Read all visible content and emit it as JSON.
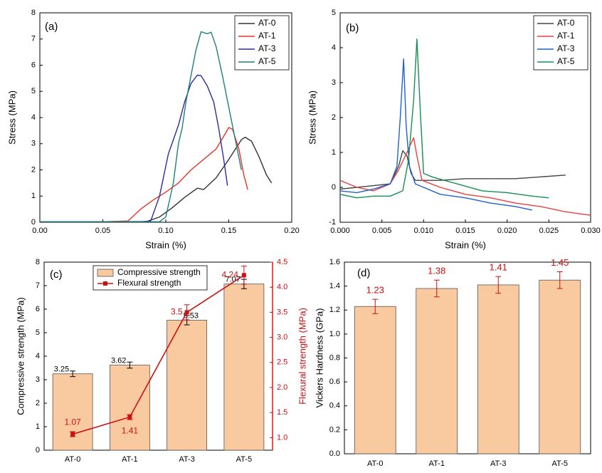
{
  "chart_data": [
    {
      "panel": "(a)",
      "type": "line",
      "xlabel": "Strain (%)",
      "ylabel": "Stress (MPa)",
      "xlim": [
        0,
        0.2
      ],
      "ylim": [
        0,
        8
      ],
      "xticks": [
        "0.00",
        "0.05",
        "0.10",
        "0.15",
        "0.20"
      ],
      "yticks": [
        "0",
        "1",
        "2",
        "3",
        "4",
        "5",
        "6",
        "7",
        "8"
      ],
      "legend_position": "top-right",
      "series": [
        {
          "name": "AT-0",
          "color": "#333333",
          "points": [
            [
              0,
              0.02
            ],
            [
              0.05,
              0.02
            ],
            [
              0.085,
              0.03
            ],
            [
              0.095,
              0.2
            ],
            [
              0.105,
              0.55
            ],
            [
              0.115,
              0.95
            ],
            [
              0.125,
              1.3
            ],
            [
              0.13,
              1.25
            ],
            [
              0.14,
              1.7
            ],
            [
              0.15,
              2.4
            ],
            [
              0.16,
              3.15
            ],
            [
              0.163,
              3.25
            ],
            [
              0.168,
              3.1
            ],
            [
              0.174,
              2.5
            ],
            [
              0.18,
              1.8
            ],
            [
              0.184,
              1.5
            ]
          ]
        },
        {
          "name": "AT-1",
          "color": "#e8332a",
          "points": [
            [
              0,
              0.02
            ],
            [
              0.05,
              0.02
            ],
            [
              0.07,
              0.05
            ],
            [
              0.08,
              0.5
            ],
            [
              0.09,
              0.85
            ],
            [
              0.1,
              1.15
            ],
            [
              0.11,
              1.5
            ],
            [
              0.12,
              2.0
            ],
            [
              0.13,
              2.4
            ],
            [
              0.14,
              2.8
            ],
            [
              0.145,
              3.2
            ],
            [
              0.15,
              3.62
            ],
            [
              0.153,
              3.55
            ],
            [
              0.158,
              2.8
            ],
            [
              0.162,
              1.8
            ],
            [
              0.165,
              1.25
            ]
          ]
        },
        {
          "name": "AT-3",
          "color": "#2b2b9e",
          "points": [
            [
              0,
              0.02
            ],
            [
              0.08,
              0.02
            ],
            [
              0.088,
              0.05
            ],
            [
              0.095,
              1.0
            ],
            [
              0.102,
              2.6
            ],
            [
              0.11,
              3.7
            ],
            [
              0.115,
              4.6
            ],
            [
              0.12,
              5.3
            ],
            [
              0.125,
              5.62
            ],
            [
              0.128,
              5.6
            ],
            [
              0.133,
              5.2
            ],
            [
              0.138,
              4.6
            ],
            [
              0.142,
              3.6
            ],
            [
              0.146,
              2.4
            ],
            [
              0.149,
              1.4
            ]
          ]
        },
        {
          "name": "AT-5",
          "color": "#1f7f7f",
          "points": [
            [
              0,
              0.02
            ],
            [
              0.095,
              0.02
            ],
            [
              0.1,
              0.2
            ],
            [
              0.106,
              1.5
            ],
            [
              0.11,
              3.0
            ],
            [
              0.113,
              3.6
            ],
            [
              0.116,
              4.6
            ],
            [
              0.12,
              5.6
            ],
            [
              0.124,
              6.6
            ],
            [
              0.128,
              7.28
            ],
            [
              0.133,
              7.2
            ],
            [
              0.136,
              7.26
            ],
            [
              0.14,
              6.7
            ],
            [
              0.145,
              5.6
            ],
            [
              0.15,
              4.4
            ],
            [
              0.155,
              3.2
            ],
            [
              0.16,
              2.0
            ]
          ]
        }
      ]
    },
    {
      "panel": "(b)",
      "type": "line",
      "xlabel": "Strain (%)",
      "ylabel": "Stress (MPa)",
      "xlim": [
        0,
        0.03
      ],
      "ylim": [
        -1,
        5
      ],
      "xticks": [
        "0.000",
        "0.005",
        "0.010",
        "0.015",
        "0.020",
        "0.025",
        "0.030"
      ],
      "yticks": [
        "-1",
        "0",
        "1",
        "2",
        "3",
        "4",
        "5"
      ],
      "legend_position": "top-right",
      "series": [
        {
          "name": "AT-0",
          "color": "#444444",
          "points": [
            [
              0,
              -0.05
            ],
            [
              0.002,
              0.0
            ],
            [
              0.004,
              0.05
            ],
            [
              0.006,
              0.1
            ],
            [
              0.007,
              0.6
            ],
            [
              0.0075,
              1.05
            ],
            [
              0.008,
              0.9
            ],
            [
              0.0085,
              0.4
            ],
            [
              0.009,
              0.2
            ],
            [
              0.012,
              0.2
            ],
            [
              0.015,
              0.25
            ],
            [
              0.018,
              0.25
            ],
            [
              0.021,
              0.25
            ],
            [
              0.024,
              0.3
            ],
            [
              0.027,
              0.35
            ]
          ]
        },
        {
          "name": "AT-1",
          "color": "#e84040",
          "points": [
            [
              0,
              0.2
            ],
            [
              0.002,
              0.0
            ],
            [
              0.004,
              -0.1
            ],
            [
              0.006,
              0.1
            ],
            [
              0.007,
              0.5
            ],
            [
              0.008,
              1.0
            ],
            [
              0.0088,
              1.42
            ],
            [
              0.0092,
              0.9
            ],
            [
              0.0098,
              0.2
            ],
            [
              0.012,
              0.0
            ],
            [
              0.015,
              -0.2
            ],
            [
              0.018,
              -0.3
            ],
            [
              0.021,
              -0.45
            ],
            [
              0.024,
              -0.55
            ],
            [
              0.027,
              -0.7
            ],
            [
              0.03,
              -0.8
            ]
          ]
        },
        {
          "name": "AT-3",
          "color": "#2060d0",
          "points": [
            [
              0,
              -0.1
            ],
            [
              0.002,
              -0.15
            ],
            [
              0.004,
              -0.05
            ],
            [
              0.006,
              0.1
            ],
            [
              0.0068,
              0.6
            ],
            [
              0.0072,
              2.0
            ],
            [
              0.0076,
              3.68
            ],
            [
              0.0079,
              1.8
            ],
            [
              0.0083,
              0.6
            ],
            [
              0.009,
              0.1
            ],
            [
              0.012,
              -0.2
            ],
            [
              0.015,
              -0.3
            ],
            [
              0.018,
              -0.45
            ],
            [
              0.021,
              -0.55
            ],
            [
              0.023,
              -0.65
            ]
          ]
        },
        {
          "name": "AT-5",
          "color": "#159050",
          "points": [
            [
              0,
              -0.2
            ],
            [
              0.002,
              -0.3
            ],
            [
              0.004,
              -0.25
            ],
            [
              0.006,
              -0.25
            ],
            [
              0.0075,
              -0.1
            ],
            [
              0.0082,
              0.8
            ],
            [
              0.0088,
              2.5
            ],
            [
              0.0092,
              4.25
            ],
            [
              0.0096,
              2.2
            ],
            [
              0.01,
              0.4
            ],
            [
              0.011,
              0.3
            ],
            [
              0.014,
              0.1
            ],
            [
              0.017,
              -0.1
            ],
            [
              0.02,
              -0.15
            ],
            [
              0.023,
              -0.25
            ],
            [
              0.025,
              -0.3
            ]
          ]
        }
      ]
    },
    {
      "panel": "(c)",
      "type": "bar",
      "categories": [
        "AT-0",
        "AT-1",
        "AT-3",
        "AT-5"
      ],
      "ylabel": "Compressive strength (MPa)",
      "y2label": "Flexural strength (MPa)",
      "ylim": [
        0,
        8
      ],
      "y2lim": [
        0.75,
        4.5
      ],
      "yticks": [
        "0",
        "1",
        "2",
        "3",
        "4",
        "5",
        "6",
        "7",
        "8"
      ],
      "y2ticks": [
        "1.0",
        "1.5",
        "2.0",
        "2.5",
        "3.0",
        "3.5",
        "4.0",
        "4.5"
      ],
      "legend_position": "top-left",
      "bar_color": "#f9c9a0",
      "line_color": "#cc1111",
      "series": [
        {
          "name": "Compressive strength",
          "values": [
            3.25,
            3.62,
            5.53,
            7.07
          ],
          "errors": [
            0.12,
            0.13,
            0.2,
            0.2
          ],
          "labels": [
            "3.25",
            "3.62",
            "5.53",
            "7.07"
          ]
        },
        {
          "name": "Flexural strength",
          "axis": "right",
          "values": [
            1.07,
            1.41,
            3.5,
            4.24
          ],
          "errors": [
            0.05,
            0.05,
            0.15,
            0.18
          ],
          "labels": [
            "1.07",
            "1.41",
            "3.5",
            "4.24"
          ]
        }
      ]
    },
    {
      "panel": "(d)",
      "type": "bar",
      "categories": [
        "AT-0",
        "AT-1",
        "AT-3",
        "AT-5"
      ],
      "ylabel": "Vickers Hardness (GPa)",
      "ylim": [
        0,
        1.6
      ],
      "yticks": [
        "0.0",
        "0.2",
        "0.4",
        "0.6",
        "0.8",
        "1.0",
        "1.2",
        "1.4",
        "1.6"
      ],
      "bar_color": "#f9c9a0",
      "label_color": "#cc1111",
      "error_color": "#cc1111",
      "series": [
        {
          "values": [
            1.23,
            1.38,
            1.41,
            1.45
          ],
          "errors": [
            0.06,
            0.07,
            0.07,
            0.07
          ],
          "labels": [
            "1.23",
            "1.38",
            "1.41",
            "1.45"
          ]
        }
      ]
    }
  ]
}
